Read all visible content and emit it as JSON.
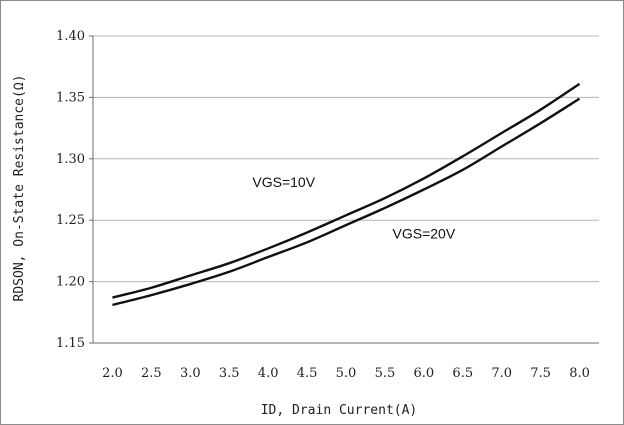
{
  "chart_data": {
    "type": "line",
    "title": "",
    "xlabel": "ID, Drain Current(A)",
    "ylabel": "RDSON, On-State Resistance(Ω)",
    "x_ticks": [
      "2.0",
      "2.5",
      "3.0",
      "3.5",
      "4.0",
      "4.5",
      "5.0",
      "5.5",
      "6.0",
      "6.5",
      "7.0",
      "7.5",
      "8.0"
    ],
    "y_ticks": [
      "1.15",
      "1.20",
      "1.25",
      "1.30",
      "1.35",
      "1.40"
    ],
    "xlim": [
      1.75,
      8.25
    ],
    "ylim": [
      1.15,
      1.4
    ],
    "grid": "horizontal",
    "x": [
      2.0,
      2.5,
      3.0,
      3.5,
      4.0,
      4.5,
      5.0,
      5.5,
      6.0,
      6.5,
      7.0,
      7.5,
      8.0
    ],
    "series": [
      {
        "name": "VGS=10V",
        "values": [
          1.187,
          1.195,
          1.205,
          1.215,
          1.227,
          1.24,
          1.254,
          1.268,
          1.284,
          1.302,
          1.321,
          1.34,
          1.361
        ]
      },
      {
        "name": "VGS=20V",
        "values": [
          1.181,
          1.189,
          1.198,
          1.208,
          1.22,
          1.232,
          1.246,
          1.26,
          1.275,
          1.291,
          1.31,
          1.329,
          1.349
        ]
      }
    ],
    "series_colors": [
      "#111111",
      "#111111"
    ],
    "label_anchors": [
      {
        "series": 0,
        "x": 4.2,
        "y": 1.277
      },
      {
        "series": 1,
        "x": 6.0,
        "y": 1.235
      }
    ]
  }
}
